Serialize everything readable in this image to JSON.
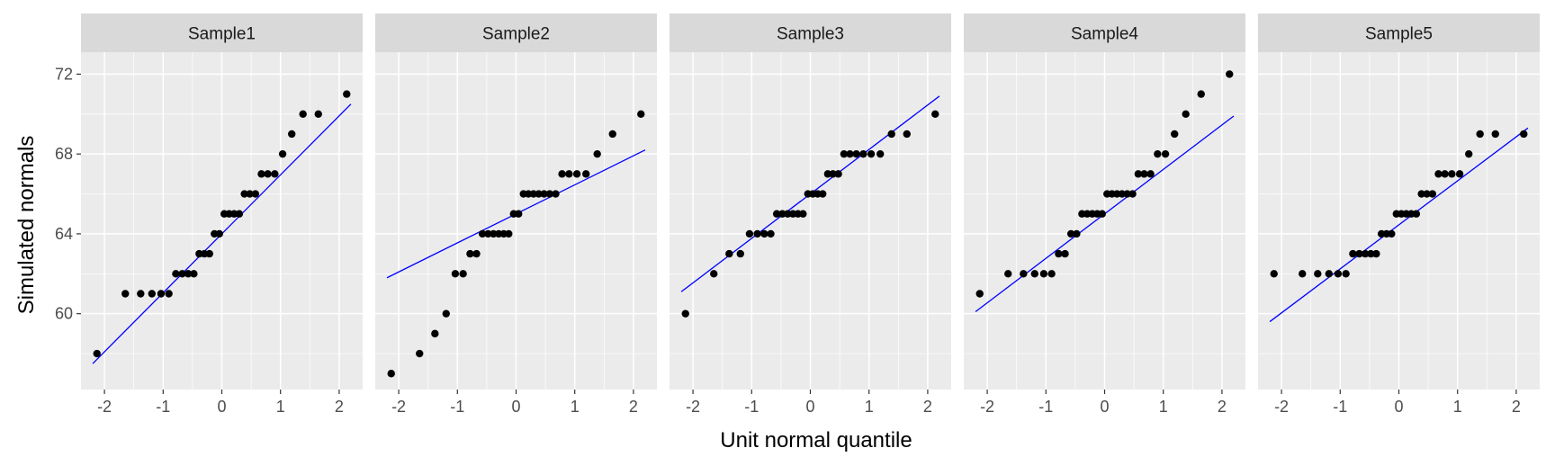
{
  "chart_data": {
    "type": "scatter",
    "title": "",
    "xlabel": "Unit normal quantile",
    "ylabel": "Simulated normals",
    "xlim": [
      -2.4,
      2.4
    ],
    "ylim": [
      56.2,
      73.1
    ],
    "x_ticks": [
      -2,
      -1,
      0,
      1,
      2
    ],
    "x_tick_labels": [
      "-2",
      "-1",
      "0",
      "1",
      "2"
    ],
    "y_ticks": [
      60,
      64,
      68,
      72
    ],
    "y_tick_labels": [
      "60",
      "64",
      "68",
      "72"
    ],
    "grid": true,
    "legend": "none",
    "colors": {
      "panel_bg": "#ebebeb",
      "strip_bg": "#d9d9d9",
      "grid": "#ffffff",
      "point": "#000000",
      "line": "#0000ff"
    },
    "panels": [
      {
        "name": "Sample1",
        "values": [
          58,
          61,
          61,
          61,
          61,
          61,
          62,
          62,
          62,
          62,
          63,
          63,
          63,
          64,
          64,
          65,
          65,
          65,
          65,
          66,
          66,
          66,
          67,
          67,
          67,
          68,
          69,
          70,
          70,
          71
        ],
        "line": [
          [
            -2.2,
            57.5
          ],
          [
            2.2,
            70.5
          ]
        ]
      },
      {
        "name": "Sample2",
        "values": [
          57,
          58,
          59,
          60,
          62,
          62,
          63,
          63,
          64,
          64,
          64,
          64,
          64,
          64,
          65,
          65,
          66,
          66,
          66,
          66,
          66,
          66,
          66,
          67,
          67,
          67,
          67,
          68,
          69,
          70
        ],
        "line": [
          [
            -2.2,
            61.8
          ],
          [
            2.2,
            68.2
          ]
        ]
      },
      {
        "name": "Sample3",
        "values": [
          60,
          62,
          63,
          63,
          64,
          64,
          64,
          64,
          65,
          65,
          65,
          65,
          65,
          65,
          66,
          66,
          66,
          66,
          67,
          67,
          67,
          68,
          68,
          68,
          68,
          68,
          68,
          69,
          69,
          70
        ],
        "line": [
          [
            -2.2,
            61.1
          ],
          [
            2.2,
            70.9
          ]
        ]
      },
      {
        "name": "Sample4",
        "values": [
          61,
          62,
          62,
          62,
          62,
          62,
          63,
          63,
          64,
          64,
          65,
          65,
          65,
          65,
          65,
          66,
          66,
          66,
          66,
          66,
          66,
          67,
          67,
          67,
          68,
          68,
          69,
          70,
          71,
          72
        ],
        "line": [
          [
            -2.2,
            60.1
          ],
          [
            2.2,
            69.9
          ]
        ]
      },
      {
        "name": "Sample5",
        "values": [
          62,
          62,
          62,
          62,
          62,
          62,
          63,
          63,
          63,
          63,
          63,
          64,
          64,
          64,
          65,
          65,
          65,
          65,
          65,
          66,
          66,
          66,
          67,
          67,
          67,
          67,
          68,
          69,
          69,
          69
        ],
        "line": [
          [
            -2.2,
            59.6
          ],
          [
            2.2,
            69.3
          ]
        ]
      }
    ]
  }
}
